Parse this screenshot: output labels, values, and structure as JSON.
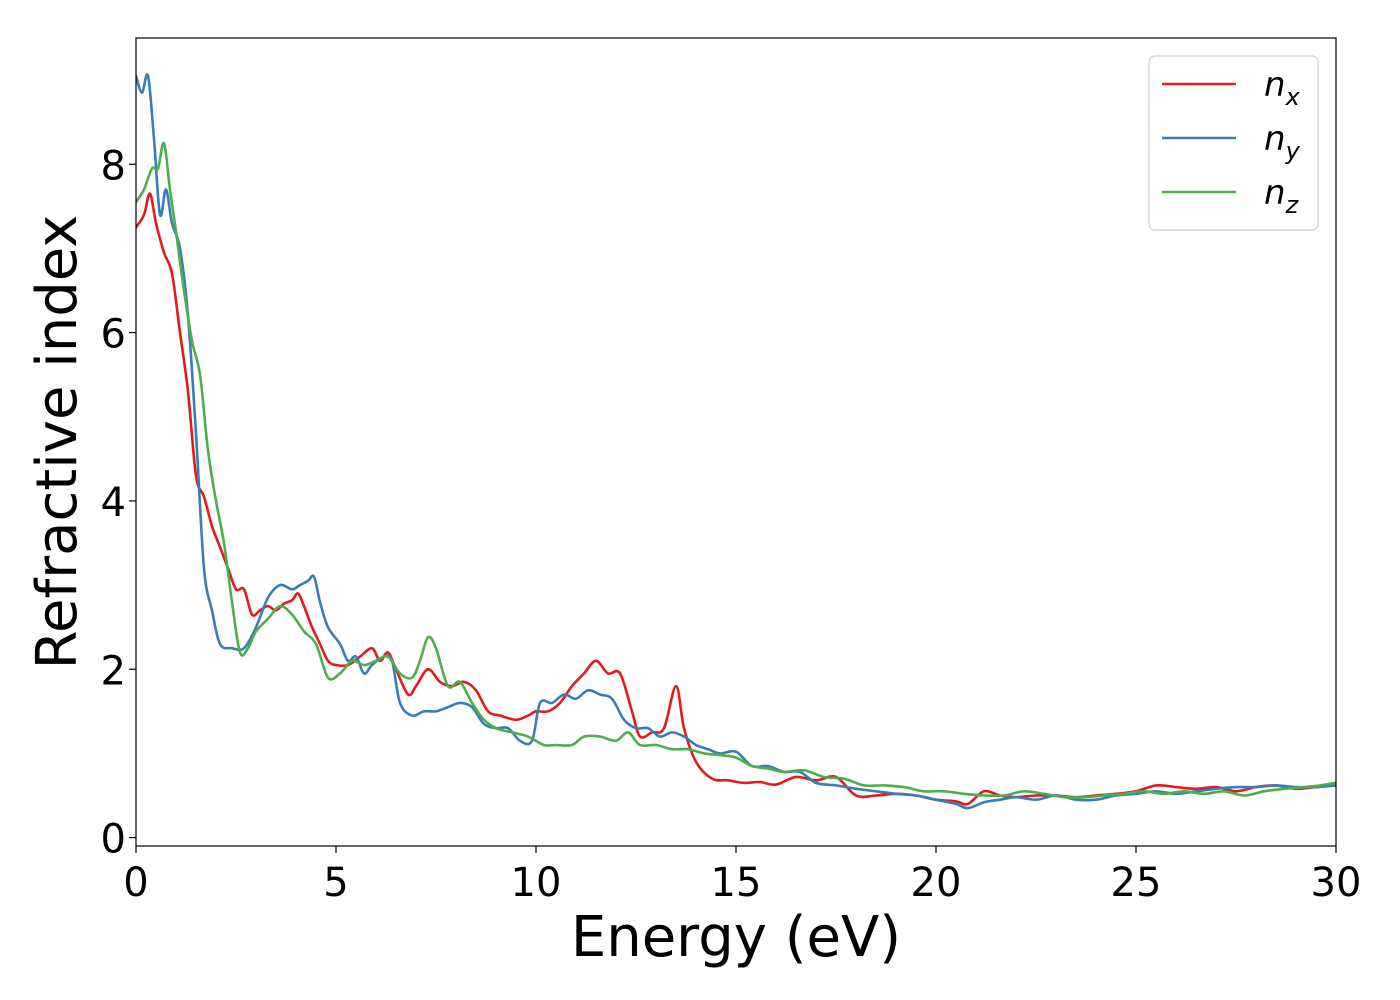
{
  "chart_data": {
    "type": "line",
    "title": "",
    "xlabel": "Energy (eV)",
    "ylabel": "Refractive index",
    "xlim": [
      0,
      30
    ],
    "ylim": [
      -0.1,
      9.5
    ],
    "xticks": [
      0,
      5,
      10,
      15,
      20,
      25,
      30
    ],
    "yticks": [
      0,
      2,
      4,
      6,
      8
    ],
    "grid": false,
    "legend_position": "top-right",
    "series": [
      {
        "name": "n",
        "subscript": "x",
        "color": "#e41a1c",
        "points": [
          [
            0,
            7.25
          ],
          [
            0.2,
            7.4
          ],
          [
            0.35,
            7.65
          ],
          [
            0.5,
            7.3
          ],
          [
            0.7,
            6.95
          ],
          [
            0.9,
            6.7
          ],
          [
            1.1,
            6.0
          ],
          [
            1.3,
            5.3
          ],
          [
            1.5,
            4.3
          ],
          [
            1.7,
            4.05
          ],
          [
            1.9,
            3.7
          ],
          [
            2.1,
            3.45
          ],
          [
            2.3,
            3.2
          ],
          [
            2.5,
            2.95
          ],
          [
            2.7,
            2.95
          ],
          [
            2.9,
            2.65
          ],
          [
            3.1,
            2.7
          ],
          [
            3.3,
            2.75
          ],
          [
            3.5,
            2.7
          ],
          [
            3.7,
            2.78
          ],
          [
            3.9,
            2.82
          ],
          [
            4.05,
            2.9
          ],
          [
            4.2,
            2.75
          ],
          [
            4.4,
            2.5
          ],
          [
            4.6,
            2.3
          ],
          [
            4.8,
            2.1
          ],
          [
            5.0,
            2.05
          ],
          [
            5.3,
            2.05
          ],
          [
            5.6,
            2.15
          ],
          [
            5.9,
            2.25
          ],
          [
            6.1,
            2.1
          ],
          [
            6.3,
            2.2
          ],
          [
            6.5,
            2.0
          ],
          [
            6.8,
            1.7
          ],
          [
            7.0,
            1.8
          ],
          [
            7.3,
            2.0
          ],
          [
            7.6,
            1.85
          ],
          [
            7.9,
            1.8
          ],
          [
            8.2,
            1.85
          ],
          [
            8.5,
            1.75
          ],
          [
            8.8,
            1.5
          ],
          [
            9.1,
            1.45
          ],
          [
            9.5,
            1.4
          ],
          [
            9.8,
            1.45
          ],
          [
            10.0,
            1.5
          ],
          [
            10.3,
            1.5
          ],
          [
            10.6,
            1.6
          ],
          [
            10.9,
            1.8
          ],
          [
            11.2,
            1.95
          ],
          [
            11.5,
            2.1
          ],
          [
            11.8,
            1.95
          ],
          [
            12.1,
            1.95
          ],
          [
            12.4,
            1.5
          ],
          [
            12.6,
            1.2
          ],
          [
            12.9,
            1.25
          ],
          [
            13.2,
            1.3
          ],
          [
            13.5,
            1.8
          ],
          [
            13.7,
            1.3
          ],
          [
            14.0,
            0.9
          ],
          [
            14.4,
            0.7
          ],
          [
            14.8,
            0.68
          ],
          [
            15.2,
            0.65
          ],
          [
            15.6,
            0.66
          ],
          [
            16.0,
            0.63
          ],
          [
            16.5,
            0.72
          ],
          [
            17.0,
            0.68
          ],
          [
            17.5,
            0.72
          ],
          [
            18.0,
            0.5
          ],
          [
            18.5,
            0.5
          ],
          [
            19.0,
            0.52
          ],
          [
            19.5,
            0.5
          ],
          [
            20.0,
            0.45
          ],
          [
            20.5,
            0.43
          ],
          [
            20.8,
            0.4
          ],
          [
            21.2,
            0.55
          ],
          [
            21.6,
            0.5
          ],
          [
            22.0,
            0.48
          ],
          [
            22.5,
            0.5
          ],
          [
            23.0,
            0.5
          ],
          [
            23.5,
            0.48
          ],
          [
            24.0,
            0.5
          ],
          [
            24.5,
            0.52
          ],
          [
            25.0,
            0.55
          ],
          [
            25.5,
            0.62
          ],
          [
            26.0,
            0.6
          ],
          [
            26.5,
            0.58
          ],
          [
            27.0,
            0.6
          ],
          [
            27.5,
            0.55
          ],
          [
            28.0,
            0.6
          ],
          [
            28.5,
            0.62
          ],
          [
            29.0,
            0.58
          ],
          [
            29.5,
            0.6
          ],
          [
            30.0,
            0.62
          ]
        ]
      },
      {
        "name": "n",
        "subscript": "y",
        "color": "#377eb8",
        "points": [
          [
            0,
            9.05
          ],
          [
            0.15,
            8.85
          ],
          [
            0.3,
            9.05
          ],
          [
            0.45,
            8.3
          ],
          [
            0.6,
            7.4
          ],
          [
            0.75,
            7.7
          ],
          [
            0.9,
            7.3
          ],
          [
            1.1,
            7.0
          ],
          [
            1.3,
            6.2
          ],
          [
            1.5,
            4.8
          ],
          [
            1.7,
            3.2
          ],
          [
            1.9,
            2.7
          ],
          [
            2.1,
            2.3
          ],
          [
            2.4,
            2.25
          ],
          [
            2.7,
            2.25
          ],
          [
            3.0,
            2.5
          ],
          [
            3.3,
            2.85
          ],
          [
            3.6,
            3.0
          ],
          [
            3.9,
            2.95
          ],
          [
            4.1,
            3.0
          ],
          [
            4.3,
            3.05
          ],
          [
            4.45,
            3.1
          ],
          [
            4.6,
            2.8
          ],
          [
            4.8,
            2.5
          ],
          [
            5.1,
            2.3
          ],
          [
            5.3,
            2.1
          ],
          [
            5.5,
            2.15
          ],
          [
            5.7,
            1.95
          ],
          [
            5.9,
            2.05
          ],
          [
            6.2,
            2.15
          ],
          [
            6.4,
            2.1
          ],
          [
            6.6,
            1.6
          ],
          [
            6.9,
            1.45
          ],
          [
            7.2,
            1.5
          ],
          [
            7.5,
            1.5
          ],
          [
            7.8,
            1.55
          ],
          [
            8.1,
            1.6
          ],
          [
            8.4,
            1.55
          ],
          [
            8.7,
            1.35
          ],
          [
            9.0,
            1.3
          ],
          [
            9.3,
            1.3
          ],
          [
            9.6,
            1.15
          ],
          [
            9.9,
            1.15
          ],
          [
            10.1,
            1.6
          ],
          [
            10.4,
            1.6
          ],
          [
            10.7,
            1.7
          ],
          [
            11.0,
            1.65
          ],
          [
            11.3,
            1.75
          ],
          [
            11.6,
            1.7
          ],
          [
            11.9,
            1.65
          ],
          [
            12.2,
            1.4
          ],
          [
            12.5,
            1.3
          ],
          [
            12.8,
            1.3
          ],
          [
            13.1,
            1.2
          ],
          [
            13.4,
            1.25
          ],
          [
            13.7,
            1.2
          ],
          [
            14.0,
            1.1
          ],
          [
            14.3,
            1.05
          ],
          [
            14.6,
            1.0
          ],
          [
            15.0,
            1.02
          ],
          [
            15.4,
            0.85
          ],
          [
            15.8,
            0.85
          ],
          [
            16.2,
            0.78
          ],
          [
            16.6,
            0.78
          ],
          [
            17.0,
            0.65
          ],
          [
            17.5,
            0.62
          ],
          [
            18.0,
            0.58
          ],
          [
            18.5,
            0.55
          ],
          [
            19.0,
            0.52
          ],
          [
            19.5,
            0.5
          ],
          [
            20.0,
            0.45
          ],
          [
            20.5,
            0.4
          ],
          [
            20.8,
            0.35
          ],
          [
            21.2,
            0.42
          ],
          [
            21.6,
            0.45
          ],
          [
            22.0,
            0.48
          ],
          [
            22.5,
            0.45
          ],
          [
            23.0,
            0.5
          ],
          [
            23.5,
            0.45
          ],
          [
            24.0,
            0.45
          ],
          [
            24.5,
            0.5
          ],
          [
            25.0,
            0.52
          ],
          [
            25.5,
            0.55
          ],
          [
            26.0,
            0.52
          ],
          [
            26.5,
            0.55
          ],
          [
            27.0,
            0.58
          ],
          [
            27.5,
            0.6
          ],
          [
            28.0,
            0.6
          ],
          [
            28.5,
            0.62
          ],
          [
            29.0,
            0.6
          ],
          [
            29.5,
            0.6
          ],
          [
            30.0,
            0.62
          ]
        ]
      },
      {
        "name": "n",
        "subscript": "z",
        "color": "#4daf4a",
        "points": [
          [
            0,
            7.55
          ],
          [
            0.2,
            7.7
          ],
          [
            0.4,
            7.95
          ],
          [
            0.55,
            7.95
          ],
          [
            0.7,
            8.25
          ],
          [
            0.85,
            7.7
          ],
          [
            1.0,
            7.2
          ],
          [
            1.2,
            6.5
          ],
          [
            1.4,
            5.9
          ],
          [
            1.6,
            5.5
          ],
          [
            1.8,
            4.6
          ],
          [
            2.0,
            4.0
          ],
          [
            2.2,
            3.5
          ],
          [
            2.4,
            2.8
          ],
          [
            2.6,
            2.2
          ],
          [
            2.8,
            2.25
          ],
          [
            3.0,
            2.45
          ],
          [
            3.3,
            2.6
          ],
          [
            3.6,
            2.75
          ],
          [
            3.9,
            2.65
          ],
          [
            4.2,
            2.45
          ],
          [
            4.5,
            2.3
          ],
          [
            4.8,
            1.9
          ],
          [
            5.1,
            1.95
          ],
          [
            5.4,
            2.1
          ],
          [
            5.7,
            2.05
          ],
          [
            6.0,
            2.1
          ],
          [
            6.3,
            2.15
          ],
          [
            6.6,
            1.95
          ],
          [
            6.9,
            1.9
          ],
          [
            7.1,
            2.1
          ],
          [
            7.3,
            2.38
          ],
          [
            7.5,
            2.25
          ],
          [
            7.8,
            1.8
          ],
          [
            8.1,
            1.85
          ],
          [
            8.4,
            1.6
          ],
          [
            8.7,
            1.4
          ],
          [
            9.0,
            1.3
          ],
          [
            9.4,
            1.25
          ],
          [
            9.8,
            1.2
          ],
          [
            10.2,
            1.1
          ],
          [
            10.5,
            1.1
          ],
          [
            10.9,
            1.1
          ],
          [
            11.2,
            1.2
          ],
          [
            11.6,
            1.2
          ],
          [
            12.0,
            1.15
          ],
          [
            12.3,
            1.25
          ],
          [
            12.6,
            1.1
          ],
          [
            13.0,
            1.1
          ],
          [
            13.4,
            1.05
          ],
          [
            13.8,
            1.05
          ],
          [
            14.2,
            1.0
          ],
          [
            14.6,
            0.98
          ],
          [
            15.0,
            0.95
          ],
          [
            15.4,
            0.85
          ],
          [
            15.8,
            0.82
          ],
          [
            16.2,
            0.78
          ],
          [
            16.7,
            0.8
          ],
          [
            17.2,
            0.72
          ],
          [
            17.7,
            0.7
          ],
          [
            18.2,
            0.62
          ],
          [
            18.7,
            0.62
          ],
          [
            19.2,
            0.6
          ],
          [
            19.7,
            0.55
          ],
          [
            20.2,
            0.55
          ],
          [
            20.7,
            0.52
          ],
          [
            21.2,
            0.5
          ],
          [
            21.7,
            0.5
          ],
          [
            22.2,
            0.55
          ],
          [
            22.7,
            0.52
          ],
          [
            23.2,
            0.48
          ],
          [
            23.7,
            0.48
          ],
          [
            24.2,
            0.5
          ],
          [
            24.7,
            0.52
          ],
          [
            25.2,
            0.55
          ],
          [
            25.7,
            0.52
          ],
          [
            26.2,
            0.55
          ],
          [
            26.7,
            0.52
          ],
          [
            27.2,
            0.55
          ],
          [
            27.7,
            0.5
          ],
          [
            28.2,
            0.55
          ],
          [
            28.7,
            0.58
          ],
          [
            29.2,
            0.6
          ],
          [
            29.6,
            0.62
          ],
          [
            30.0,
            0.65
          ]
        ]
      }
    ]
  }
}
